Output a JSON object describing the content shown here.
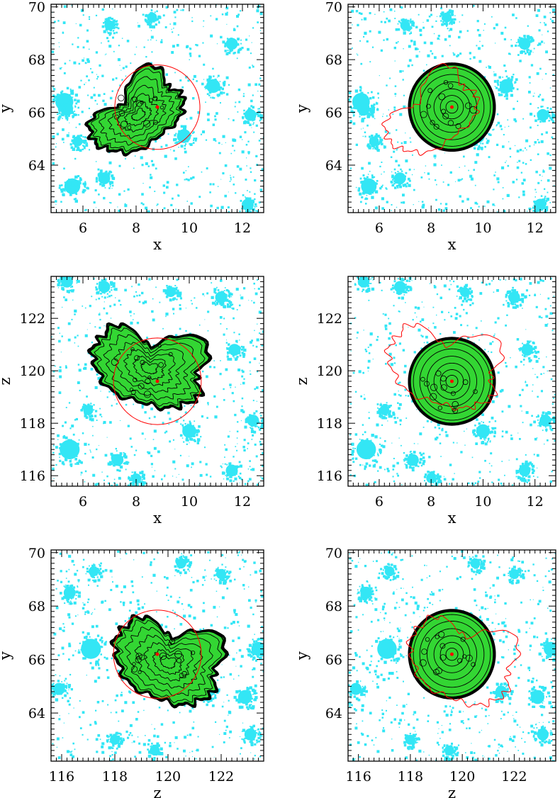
{
  "chart_data": [
    {
      "type": "scatter",
      "xlabel": "x",
      "ylabel": "y",
      "xlim": [
        4.8,
        12.8
      ],
      "ylim": [
        62.2,
        70.1
      ],
      "xticks": [
        "6",
        "8",
        "10",
        "12"
      ],
      "yticks": [
        "64",
        "66",
        "68",
        "70"
      ],
      "colors": {
        "field": "#33e6f5",
        "region": "#33d633",
        "contour": "#000000",
        "outline": "#ff0000"
      },
      "field_clumps": [
        [
          5.3,
          66.4,
          0.45
        ],
        [
          5.4,
          66.1,
          0.3
        ],
        [
          5.6,
          63.2,
          0.4
        ],
        [
          6.8,
          63.5,
          0.3
        ],
        [
          10.9,
          67.0,
          0.35
        ],
        [
          9.8,
          65.1,
          0.35
        ],
        [
          11.6,
          68.6,
          0.3
        ],
        [
          12.3,
          65.9,
          0.3
        ],
        [
          7.0,
          69.3,
          0.25
        ],
        [
          5.8,
          64.9,
          0.25
        ],
        [
          8.6,
          69.6,
          0.25
        ],
        [
          12.2,
          62.5,
          0.3
        ]
      ],
      "region": {
        "kind": "blob",
        "center": [
          8.1,
          65.9
        ],
        "rx": 1.9,
        "ry": 1.15,
        "angle_deg": 28,
        "bumps": [
          0.1,
          -0.12,
          0.15,
          -0.08,
          0.06
        ]
      },
      "outline": {
        "kind": "circle",
        "center": [
          8.8,
          66.2
        ],
        "r": 1.6
      },
      "peak": [
        8.8,
        66.2
      ]
    },
    {
      "type": "scatter",
      "xlabel": "x",
      "ylabel": "y",
      "xlim": [
        4.8,
        12.8
      ],
      "ylim": [
        62.2,
        70.1
      ],
      "xticks": [
        "6",
        "8",
        "10",
        "12"
      ],
      "yticks": [
        "64",
        "66",
        "68",
        "70"
      ],
      "colors": {
        "field": "#33e6f5",
        "region": "#33d633",
        "contour": "#000000",
        "outline": "#ff0000"
      },
      "field_clumps": [
        [
          5.3,
          66.4,
          0.45
        ],
        [
          5.4,
          66.1,
          0.3
        ],
        [
          5.6,
          63.2,
          0.4
        ],
        [
          6.8,
          63.5,
          0.3
        ],
        [
          10.9,
          67.0,
          0.35
        ],
        [
          9.8,
          65.1,
          0.35
        ],
        [
          11.6,
          68.6,
          0.3
        ],
        [
          12.3,
          65.9,
          0.3
        ],
        [
          7.0,
          69.3,
          0.25
        ],
        [
          5.8,
          64.9,
          0.25
        ],
        [
          8.6,
          69.6,
          0.25
        ],
        [
          12.2,
          62.5,
          0.3
        ]
      ],
      "region": {
        "kind": "circle",
        "center": [
          8.8,
          66.2
        ],
        "r": 1.65
      },
      "outline": {
        "kind": "blob",
        "center": [
          8.1,
          65.9
        ],
        "rx": 1.9,
        "ry": 1.15,
        "angle_deg": 28,
        "bumps": [
          0.1,
          -0.12,
          0.15,
          -0.08,
          0.06
        ]
      },
      "peak": [
        8.8,
        66.2
      ]
    },
    {
      "type": "scatter",
      "xlabel": "x",
      "ylabel": "z",
      "xlim": [
        4.8,
        12.8
      ],
      "ylim": [
        115.6,
        123.6
      ],
      "xticks": [
        "6",
        "8",
        "10",
        "12"
      ],
      "yticks": [
        "116",
        "118",
        "120",
        "122"
      ],
      "colors": {
        "field": "#33e6f5",
        "region": "#33d633",
        "contour": "#000000",
        "outline": "#ff0000"
      },
      "field_clumps": [
        [
          5.5,
          117.0,
          0.5
        ],
        [
          6.8,
          123.2,
          0.3
        ],
        [
          10.0,
          117.7,
          0.35
        ],
        [
          11.7,
          120.8,
          0.3
        ],
        [
          12.4,
          118.1,
          0.3
        ],
        [
          7.3,
          116.6,
          0.3
        ],
        [
          11.2,
          122.8,
          0.3
        ],
        [
          5.4,
          123.4,
          0.3
        ],
        [
          9.3,
          123.0,
          0.25
        ],
        [
          6.2,
          118.5,
          0.25
        ],
        [
          11.6,
          116.2,
          0.3
        ],
        [
          8.0,
          115.9,
          0.25
        ]
      ],
      "region": {
        "kind": "blob",
        "center": [
          8.5,
          120.1
        ],
        "rx": 2.2,
        "ry": 1.4,
        "angle_deg": -28,
        "bumps": [
          0.12,
          -0.1,
          0.14,
          -0.1,
          0.07
        ]
      },
      "outline": {
        "kind": "circle",
        "center": [
          8.8,
          119.6
        ],
        "r": 1.65
      },
      "peak": [
        8.8,
        119.6
      ]
    },
    {
      "type": "scatter",
      "xlabel": "x",
      "ylabel": "z",
      "xlim": [
        4.8,
        12.8
      ],
      "ylim": [
        115.6,
        123.6
      ],
      "xticks": [
        "6",
        "8",
        "10",
        "12"
      ],
      "yticks": [
        "116",
        "118",
        "120",
        "122"
      ],
      "colors": {
        "field": "#33e6f5",
        "region": "#33d633",
        "contour": "#000000",
        "outline": "#ff0000"
      },
      "field_clumps": [
        [
          5.5,
          117.0,
          0.5
        ],
        [
          6.8,
          123.2,
          0.3
        ],
        [
          10.0,
          117.7,
          0.35
        ],
        [
          11.7,
          120.8,
          0.3
        ],
        [
          12.4,
          118.1,
          0.3
        ],
        [
          7.3,
          116.6,
          0.3
        ],
        [
          11.2,
          122.8,
          0.3
        ],
        [
          5.4,
          123.4,
          0.3
        ],
        [
          9.3,
          123.0,
          0.25
        ],
        [
          6.2,
          118.5,
          0.25
        ],
        [
          11.6,
          116.2,
          0.3
        ],
        [
          8.0,
          115.9,
          0.25
        ]
      ],
      "region": {
        "kind": "circle",
        "center": [
          8.8,
          119.6
        ],
        "r": 1.65
      },
      "outline": {
        "kind": "blob",
        "center": [
          8.5,
          120.1
        ],
        "rx": 2.2,
        "ry": 1.4,
        "angle_deg": -28,
        "bumps": [
          0.12,
          -0.1,
          0.14,
          -0.1,
          0.07
        ]
      },
      "peak": [
        8.8,
        119.6
      ]
    },
    {
      "type": "scatter",
      "xlabel": "z",
      "ylabel": "y",
      "xlim": [
        115.6,
        123.6
      ],
      "ylim": [
        62.2,
        70.1
      ],
      "xticks": [
        "116",
        "118",
        "120",
        "122"
      ],
      "yticks": [
        "64",
        "66",
        "68",
        "70"
      ],
      "colors": {
        "field": "#33e6f5",
        "region": "#33d633",
        "contour": "#000000",
        "outline": "#ff0000"
      },
      "field_clumps": [
        [
          117.1,
          66.4,
          0.5
        ],
        [
          123.4,
          66.4,
          0.35
        ],
        [
          116.3,
          68.5,
          0.3
        ],
        [
          122.9,
          64.6,
          0.35
        ],
        [
          121.5,
          64.8,
          0.3
        ],
        [
          118.0,
          63.0,
          0.25
        ],
        [
          122.0,
          69.2,
          0.25
        ],
        [
          115.9,
          64.9,
          0.3
        ],
        [
          123.1,
          63.2,
          0.3
        ],
        [
          120.5,
          69.6,
          0.25
        ],
        [
          117.2,
          69.3,
          0.25
        ],
        [
          119.5,
          62.6,
          0.25
        ]
      ],
      "region": {
        "kind": "blob",
        "center": [
          120.0,
          65.9
        ],
        "rx": 2.1,
        "ry": 1.45,
        "angle_deg": -32,
        "bumps": [
          0.1,
          -0.1,
          0.12,
          -0.08,
          0.06
        ]
      },
      "outline": {
        "kind": "circle",
        "center": [
          119.6,
          66.2
        ],
        "r": 1.65
      },
      "peak": [
        119.6,
        66.2
      ]
    },
    {
      "type": "scatter",
      "xlabel": "z",
      "ylabel": "y",
      "xlim": [
        115.6,
        123.6
      ],
      "ylim": [
        62.2,
        70.1
      ],
      "xticks": [
        "116",
        "118",
        "120",
        "122"
      ],
      "yticks": [
        "64",
        "66",
        "68",
        "70"
      ],
      "colors": {
        "field": "#33e6f5",
        "region": "#33d633",
        "contour": "#000000",
        "outline": "#ff0000"
      },
      "field_clumps": [
        [
          117.1,
          66.4,
          0.5
        ],
        [
          123.4,
          66.4,
          0.35
        ],
        [
          116.3,
          68.5,
          0.3
        ],
        [
          122.9,
          64.6,
          0.35
        ],
        [
          121.5,
          64.8,
          0.3
        ],
        [
          118.0,
          63.0,
          0.25
        ],
        [
          122.0,
          69.2,
          0.25
        ],
        [
          115.9,
          64.9,
          0.3
        ],
        [
          123.1,
          63.2,
          0.3
        ],
        [
          120.5,
          69.6,
          0.25
        ],
        [
          117.2,
          69.3,
          0.25
        ],
        [
          119.5,
          62.6,
          0.25
        ]
      ],
      "region": {
        "kind": "circle",
        "center": [
          119.6,
          66.2
        ],
        "r": 1.65
      },
      "outline": {
        "kind": "blob",
        "center": [
          120.0,
          65.9
        ],
        "rx": 2.1,
        "ry": 1.45,
        "angle_deg": -32,
        "bumps": [
          0.1,
          -0.1,
          0.12,
          -0.08,
          0.06
        ]
      },
      "peak": [
        119.6,
        66.2
      ]
    }
  ]
}
